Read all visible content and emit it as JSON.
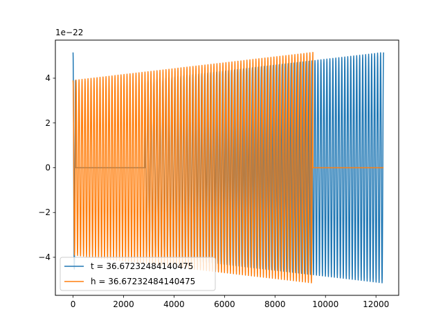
{
  "chart_data": {
    "type": "line",
    "title": "",
    "xlabel": "",
    "ylabel": "",
    "xlim": [
      -700,
      12900
    ],
    "ylim": [
      -5.7,
      5.7
    ],
    "y_offset_label": "1e−22",
    "x_ticks": [
      0,
      2000,
      4000,
      6000,
      8000,
      10000,
      12000
    ],
    "x_tick_labels": [
      "0",
      "2000",
      "4000",
      "6000",
      "8000",
      "10000",
      "12000"
    ],
    "y_ticks": [
      -4,
      -2,
      0,
      2,
      4
    ],
    "y_tick_labels": [
      "−4",
      "−2",
      "0",
      "2",
      "4"
    ],
    "grid": false,
    "legend_position": "lower-left",
    "series": [
      {
        "name": "t = 36.67232484140475",
        "color": "#1f77b4",
        "segments": [
          {
            "x_start": 0,
            "x_end": 100,
            "amp_start": 5.15,
            "amp_end": 3.9,
            "cycles": 1
          },
          {
            "x_start": 100,
            "x_end": 2850,
            "amp_start": 0,
            "amp_end": 0,
            "cycles": 0
          },
          {
            "x_start": 2850,
            "x_end": 12300,
            "amp_start": 3.9,
            "amp_end": 5.15,
            "cycles": 80
          }
        ]
      },
      {
        "name": "h = 36.67232484140475",
        "color": "#ff7f0e",
        "segments": [
          {
            "x_start": 0,
            "x_end": 9500,
            "amp_start": 3.9,
            "amp_end": 5.15,
            "cycles": 80
          },
          {
            "x_start": 9500,
            "x_end": 12300,
            "amp_start": 0,
            "amp_end": 0,
            "cycles": 0
          }
        ]
      }
    ]
  }
}
